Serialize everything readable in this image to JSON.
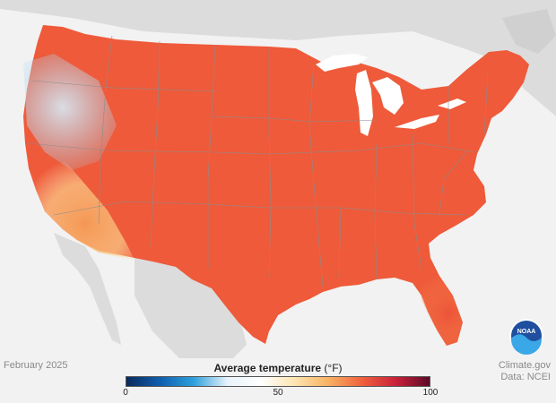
{
  "map": {
    "legend": {
      "title": "Average temperature",
      "unit": "(°F)",
      "min_label": "0",
      "mid_label": "50",
      "max_label": "100",
      "colors": [
        "#0b2a5c",
        "#0f5fae",
        "#2fa0dc",
        "#e8f3fa",
        "#ffffff",
        "#fde4b0",
        "#f7b262",
        "#f0603e",
        "#c9213a",
        "#5c0a29"
      ]
    },
    "date_label": "February 2025",
    "credit_line1": "Climate.gov",
    "credit_line2": "Data: NCEI",
    "logo_text": "NOAA",
    "colors": {
      "background": "#f2f2f2",
      "land_outside": "#dcdcdc",
      "water": "#ffffff",
      "state_border": "#8c8c8c"
    }
  }
}
